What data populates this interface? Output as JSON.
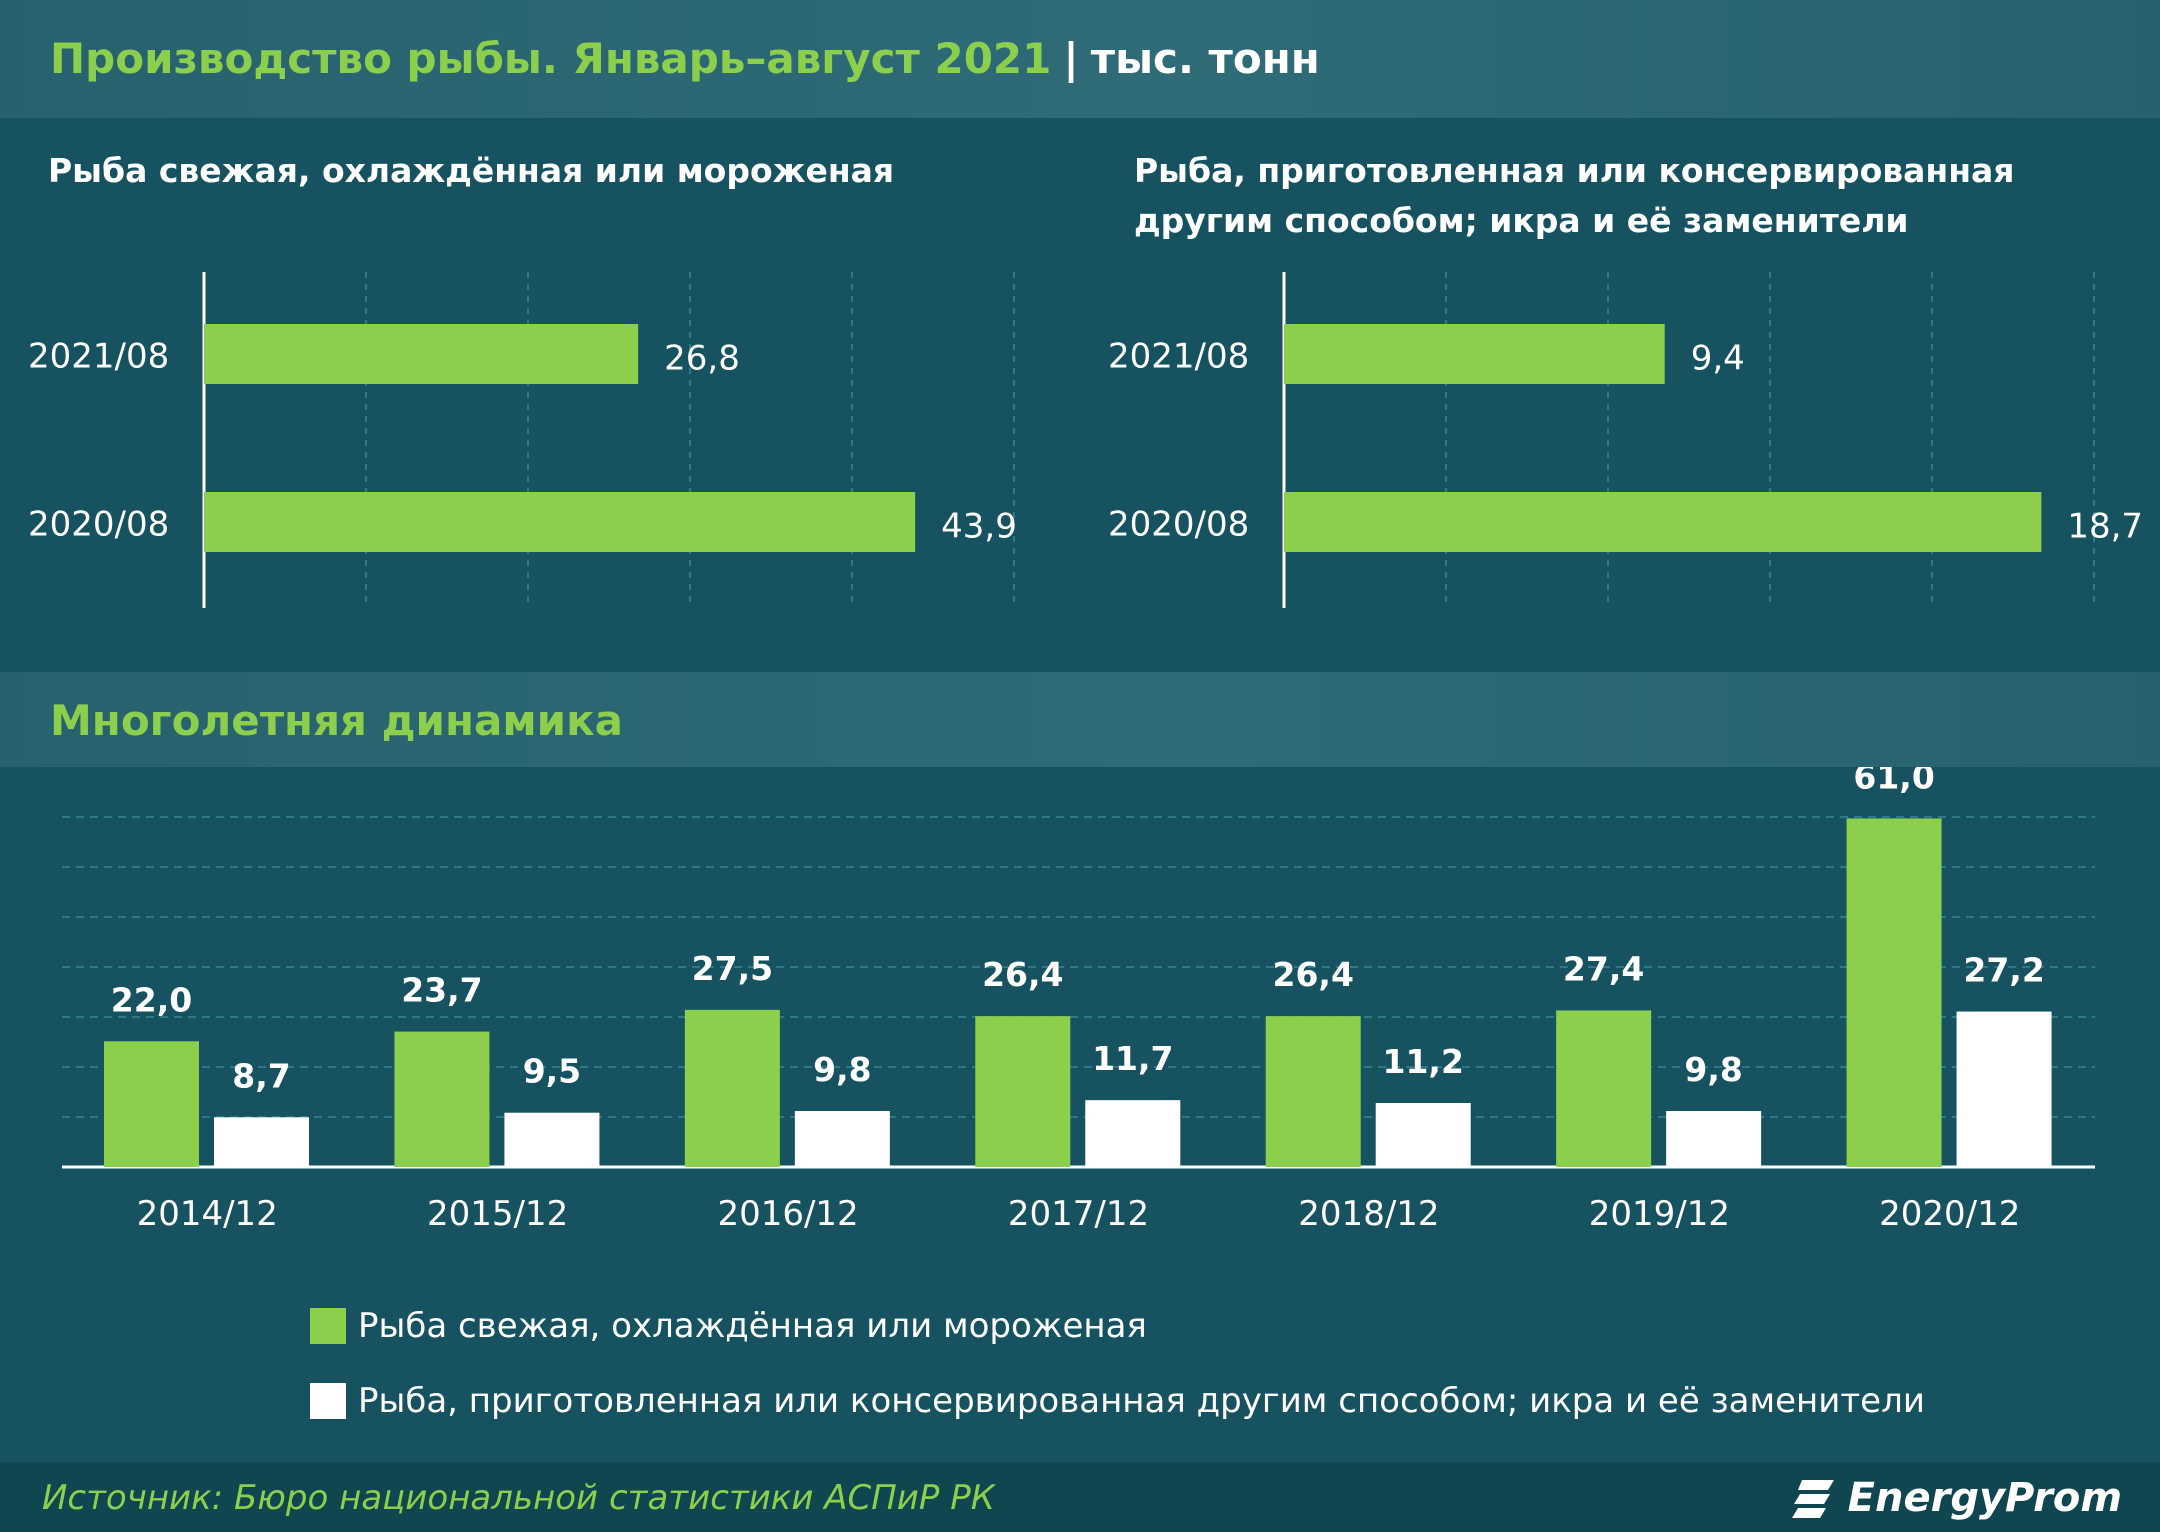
{
  "header": {
    "title": "Производство рыбы. Январь–август 2021",
    "separator": "|",
    "unit": "тыс. тонн"
  },
  "section_title": "Многолетняя динамика",
  "legend": {
    "fresh": "Рыба свежая, охлаждённая или мороженая",
    "processed": "Рыба, приготовленная или консервированная другим способом; икра и её заменители"
  },
  "source": "Источник: Бюро национальной статистики АСПиР РК",
  "logo_text": "EnergyProm",
  "colors": {
    "background": "#16525f",
    "green": "#8ccf4d",
    "white": "#ffffff",
    "grid": "#2f7a8a"
  },
  "chart_data": [
    {
      "type": "bar",
      "orientation": "horizontal",
      "title": "Рыба свежая, охлаждённая или мороженая",
      "categories": [
        "2021/08",
        "2020/08"
      ],
      "values": [
        26.8,
        43.9
      ],
      "labels": [
        "26,8",
        "43,9"
      ],
      "xlim": [
        0,
        50
      ],
      "grid": true,
      "color": "#8ccf4d"
    },
    {
      "type": "bar",
      "orientation": "horizontal",
      "title_lines": [
        "Рыба, приготовленная или консервированная",
        "другим способом; икра и её заменители"
      ],
      "categories": [
        "2021/08",
        "2020/08"
      ],
      "values": [
        9.4,
        18.7
      ],
      "labels": [
        "9,4",
        "18,7"
      ],
      "xlim": [
        0,
        20
      ],
      "grid": true,
      "color": "#8ccf4d"
    },
    {
      "type": "bar",
      "orientation": "vertical",
      "categories": [
        "2014/12",
        "2015/12",
        "2016/12",
        "2017/12",
        "2018/12",
        "2019/12",
        "2020/12"
      ],
      "series": [
        {
          "name": "Рыба свежая, охлаждённая или мороженая",
          "color": "#8ccf4d",
          "values": [
            22.0,
            23.7,
            27.5,
            26.4,
            26.4,
            27.4,
            61.0
          ],
          "labels": [
            "22,0",
            "23,7",
            "27,5",
            "26,4",
            "26,4",
            "27,4",
            "61,0"
          ]
        },
        {
          "name": "Рыба, приготовленная или консервированная другим способом; икра и её заменители",
          "color": "#ffffff",
          "values": [
            8.7,
            9.5,
            9.8,
            11.7,
            11.2,
            9.8,
            27.2
          ],
          "labels": [
            "8,7",
            "9,5",
            "9,8",
            "11,7",
            "11,2",
            "9,8",
            "27,2"
          ]
        }
      ],
      "ylim": [
        0,
        70
      ],
      "grid": true,
      "legend": "bottom"
    }
  ]
}
